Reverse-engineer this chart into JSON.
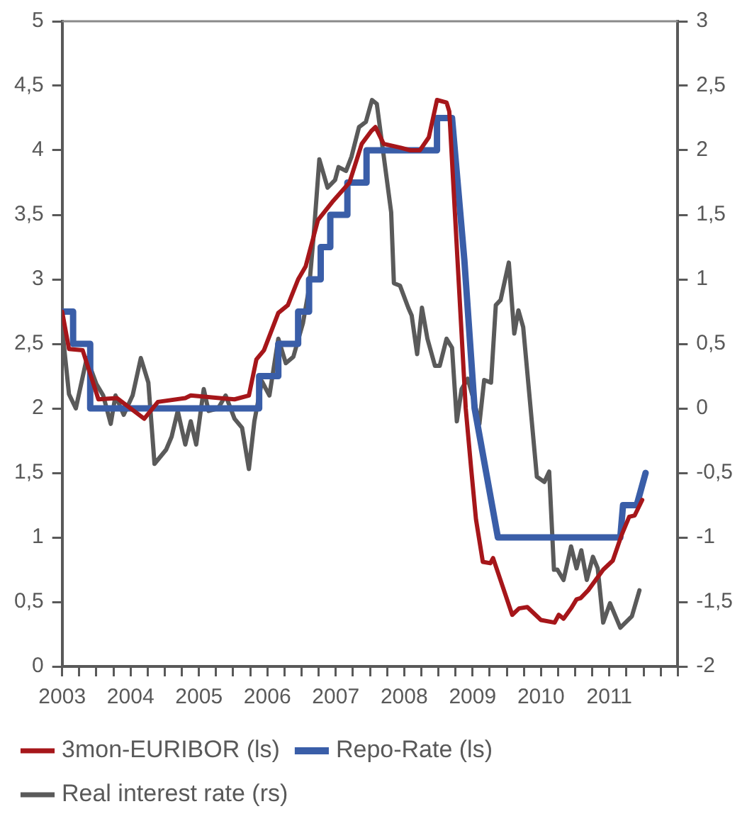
{
  "chart_data": {
    "type": "line",
    "legend": "bottom",
    "grid": false,
    "xlim": [
      2003,
      2012
    ],
    "xticks": [
      2003,
      {
        "value": 2003.25,
        "label": null
      },
      {
        "value": 2003.5,
        "label": null
      },
      {
        "value": 2003.75,
        "label": null
      },
      2004,
      {
        "value": 2004.25,
        "label": null
      },
      {
        "value": 2004.5,
        "label": null
      },
      {
        "value": 2004.75,
        "label": null
      },
      2005,
      {
        "value": 2005.25,
        "label": null
      },
      {
        "value": 2005.5,
        "label": null
      },
      {
        "value": 2005.75,
        "label": null
      },
      2006,
      {
        "value": 2006.25,
        "label": null
      },
      {
        "value": 2006.5,
        "label": null
      },
      {
        "value": 2006.75,
        "label": null
      },
      2007,
      {
        "value": 2007.25,
        "label": null
      },
      {
        "value": 2007.5,
        "label": null
      },
      {
        "value": 2007.75,
        "label": null
      },
      2008,
      {
        "value": 2008.25,
        "label": null
      },
      {
        "value": 2008.5,
        "label": null
      },
      {
        "value": 2008.75,
        "label": null
      },
      2009,
      {
        "value": 2009.25,
        "label": null
      },
      {
        "value": 2009.5,
        "label": null
      },
      {
        "value": 2009.75,
        "label": null
      },
      2010,
      {
        "value": 2010.25,
        "label": null
      },
      {
        "value": 2010.5,
        "label": null
      },
      {
        "value": 2010.75,
        "label": null
      },
      2011,
      {
        "value": 2011.25,
        "label": null
      },
      {
        "value": 2011.5,
        "label": null
      },
      {
        "value": 2011.75,
        "label": null
      },
      {
        "value": 2012,
        "label": null
      }
    ],
    "ylim": [
      0,
      5
    ],
    "yticks": [
      0,
      {
        "value": 0.5,
        "label": "0,5"
      },
      1,
      {
        "value": 1.5,
        "label": "1,5"
      },
      2,
      {
        "value": 2.5,
        "label": "2,5"
      },
      3,
      {
        "value": 3.5,
        "label": "3,5"
      },
      4,
      {
        "value": 4.5,
        "label": "4,5"
      },
      5
    ],
    "y2lim": [
      -2,
      3
    ],
    "y2ticks": [
      -2,
      {
        "value": -1.5,
        "label": "-1,5"
      },
      -1,
      {
        "value": -0.5,
        "label": "-0,5"
      },
      0,
      {
        "value": 0.5,
        "label": "0,5"
      },
      1,
      {
        "value": 1.5,
        "label": "1,5"
      },
      2,
      {
        "value": 2.5,
        "label": "2,5"
      },
      3
    ],
    "series": [
      {
        "name": "3mon-EURIBOR (ls)",
        "color": "#a6161a",
        "x": [
          2003,
          2003.1,
          2003.3,
          2003.53,
          2003.8,
          2004.2,
          2004.4,
          2004.8,
          2004.88,
          2005.3,
          2005.52,
          2005.73,
          2005.84,
          2005.95,
          2006.16,
          2006.3,
          2006.45,
          2006.56,
          2006.74,
          2006.95,
          2007.2,
          2007.38,
          2007.52,
          2007.58,
          2007.7,
          2007.95,
          2008.09,
          2008.23,
          2008.36,
          2008.48,
          2008.62,
          2008.66,
          2008.9,
          2008.98,
          2009.05,
          2009.15,
          2009.26,
          2009.3,
          2009.58,
          2009.68,
          2009.8,
          2010,
          2010.2,
          2010.26,
          2010.33,
          2010.44,
          2010.52,
          2010.58,
          2010.69,
          2010.91,
          2011.05,
          2011.18,
          2011.29,
          2011.37,
          2011.48
        ],
        "values": [
          2.75,
          2.46,
          2.45,
          2.07,
          2.08,
          1.92,
          2.05,
          2.08,
          2.1,
          2.08,
          2.07,
          2.1,
          2.38,
          2.45,
          2.74,
          2.8,
          3,
          3.1,
          3.46,
          3.6,
          3.75,
          4.05,
          4.15,
          4.18,
          4.05,
          4.02,
          4,
          4,
          4.1,
          4.39,
          4.37,
          4.3,
          2,
          1.53,
          1.14,
          0.81,
          0.8,
          0.84,
          0.4,
          0.45,
          0.46,
          0.36,
          0.34,
          0.4,
          0.37,
          0.45,
          0.52,
          0.53,
          0.59,
          0.75,
          0.82,
          1.02,
          1.16,
          1.17,
          1.29
        ]
      },
      {
        "name": "Repo-Rate (ls)",
        "color": "#3a5ea8",
        "x": [
          2003,
          2003.16,
          2003.16,
          2003.41,
          2003.41,
          2005.88,
          2005.88,
          2006.16,
          2006.16,
          2006.45,
          2006.45,
          2006.61,
          2006.61,
          2006.78,
          2006.78,
          2006.92,
          2006.92,
          2007.17,
          2007.17,
          2007.45,
          2007.45,
          2008.48,
          2008.48,
          2008.7,
          2008.88,
          2009.03,
          2009.2,
          2009.37,
          2011.16,
          2011.2,
          2011.4,
          2011.53
        ],
        "values": [
          2.75,
          2.75,
          2.5,
          2.5,
          2,
          2,
          2.25,
          2.25,
          2.5,
          2.5,
          2.75,
          2.75,
          3,
          3,
          3.25,
          3.25,
          3.5,
          3.5,
          3.75,
          3.75,
          4,
          4,
          4.25,
          4.25,
          3.15,
          2,
          1.5,
          1,
          1,
          1.25,
          1.25,
          1.5
        ]
      },
      {
        "name": "Real interest rate (rs)",
        "color": "#5a5a5a",
        "axis": "y2",
        "x": [
          2003,
          2003.1,
          2003.2,
          2003.36,
          2003.5,
          2003.6,
          2003.71,
          2003.78,
          2003.9,
          2004.03,
          2004.15,
          2004.26,
          2004.35,
          2004.52,
          2004.6,
          2004.69,
          2004.8,
          2004.88,
          2004.96,
          2005.07,
          2005.14,
          2005.28,
          2005.39,
          2005.52,
          2005.63,
          2005.73,
          2005.81,
          2005.92,
          2006.03,
          2006.16,
          2006.27,
          2006.38,
          2006.52,
          2006.61,
          2006.68,
          2006.76,
          2006.88,
          2006.99,
          2007.04,
          2007.15,
          2007.23,
          2007.34,
          2007.44,
          2007.53,
          2007.6,
          2007.81,
          2007.85,
          2007.94,
          2008.06,
          2008.11,
          2008.19,
          2008.26,
          2008.34,
          2008.45,
          2008.52,
          2008.62,
          2008.7,
          2008.77,
          2008.84,
          2008.93,
          2009.03,
          2009.1,
          2009.17,
          2009.27,
          2009.34,
          2009.41,
          2009.53,
          2009.61,
          2009.67,
          2009.74,
          2009.94,
          2010.05,
          2010.12,
          2010.19,
          2010.24,
          2010.33,
          2010.44,
          2010.52,
          2010.59,
          2010.67,
          2010.76,
          2010.83,
          2010.91,
          2011.01,
          2011.16,
          2011.33,
          2011.44
        ],
        "values": [
          0.62,
          0.11,
          0,
          0.39,
          0.19,
          0.1,
          -0.12,
          0.1,
          -0.05,
          0.1,
          0.39,
          0.2,
          -0.43,
          -0.32,
          -0.22,
          -0.02,
          -0.28,
          -0.1,
          -0.28,
          0.15,
          -0.02,
          0,
          0.1,
          -0.08,
          -0.15,
          -0.47,
          -0.1,
          0.21,
          0.1,
          0.54,
          0.35,
          0.4,
          0.66,
          0.93,
          1.36,
          1.93,
          1.71,
          1.77,
          1.87,
          1.84,
          1.95,
          2.18,
          2.22,
          2.39,
          2.36,
          1.52,
          0.97,
          0.95,
          0.78,
          0.72,
          0.42,
          0.78,
          0.54,
          0.33,
          0.33,
          0.54,
          0.47,
          -0.1,
          0.15,
          0.23,
          0.04,
          -0.12,
          0.22,
          0.2,
          0.8,
          0.84,
          1.13,
          0.58,
          0.76,
          0.63,
          -0.53,
          -0.57,
          -0.49,
          -1.25,
          -1.25,
          -1.33,
          -1.07,
          -1.24,
          -1.1,
          -1.33,
          -1.15,
          -1.24,
          -1.66,
          -1.51,
          -1.7,
          -1.61,
          -1.41
        ]
      }
    ]
  }
}
